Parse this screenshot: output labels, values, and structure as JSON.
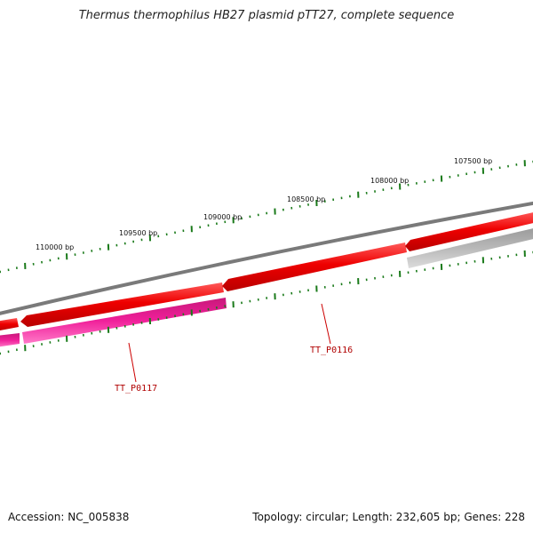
{
  "title": "Thermus thermophilus HB27 plasmid pTT27, complete sequence",
  "footer": {
    "accession": "Accession: NC_005838",
    "summary": "Topology: circular; Length: 232,605 bp; Genes: 228"
  },
  "scale_labels": [
    "110000 bp",
    "109500 bp",
    "109000 bp",
    "108500 bp",
    "108000 bp",
    "107500 bp"
  ],
  "gene_labels": [
    "TT_P0117",
    "TT_P0116"
  ],
  "colors": {
    "backbone": "#7a7a7a",
    "forward_gene": "#e60000",
    "reverse_gene": "#e8188a",
    "gray_feature": "#b4b4b4",
    "ticks": "#1a7a1a",
    "gene_label": "#b00000"
  }
}
